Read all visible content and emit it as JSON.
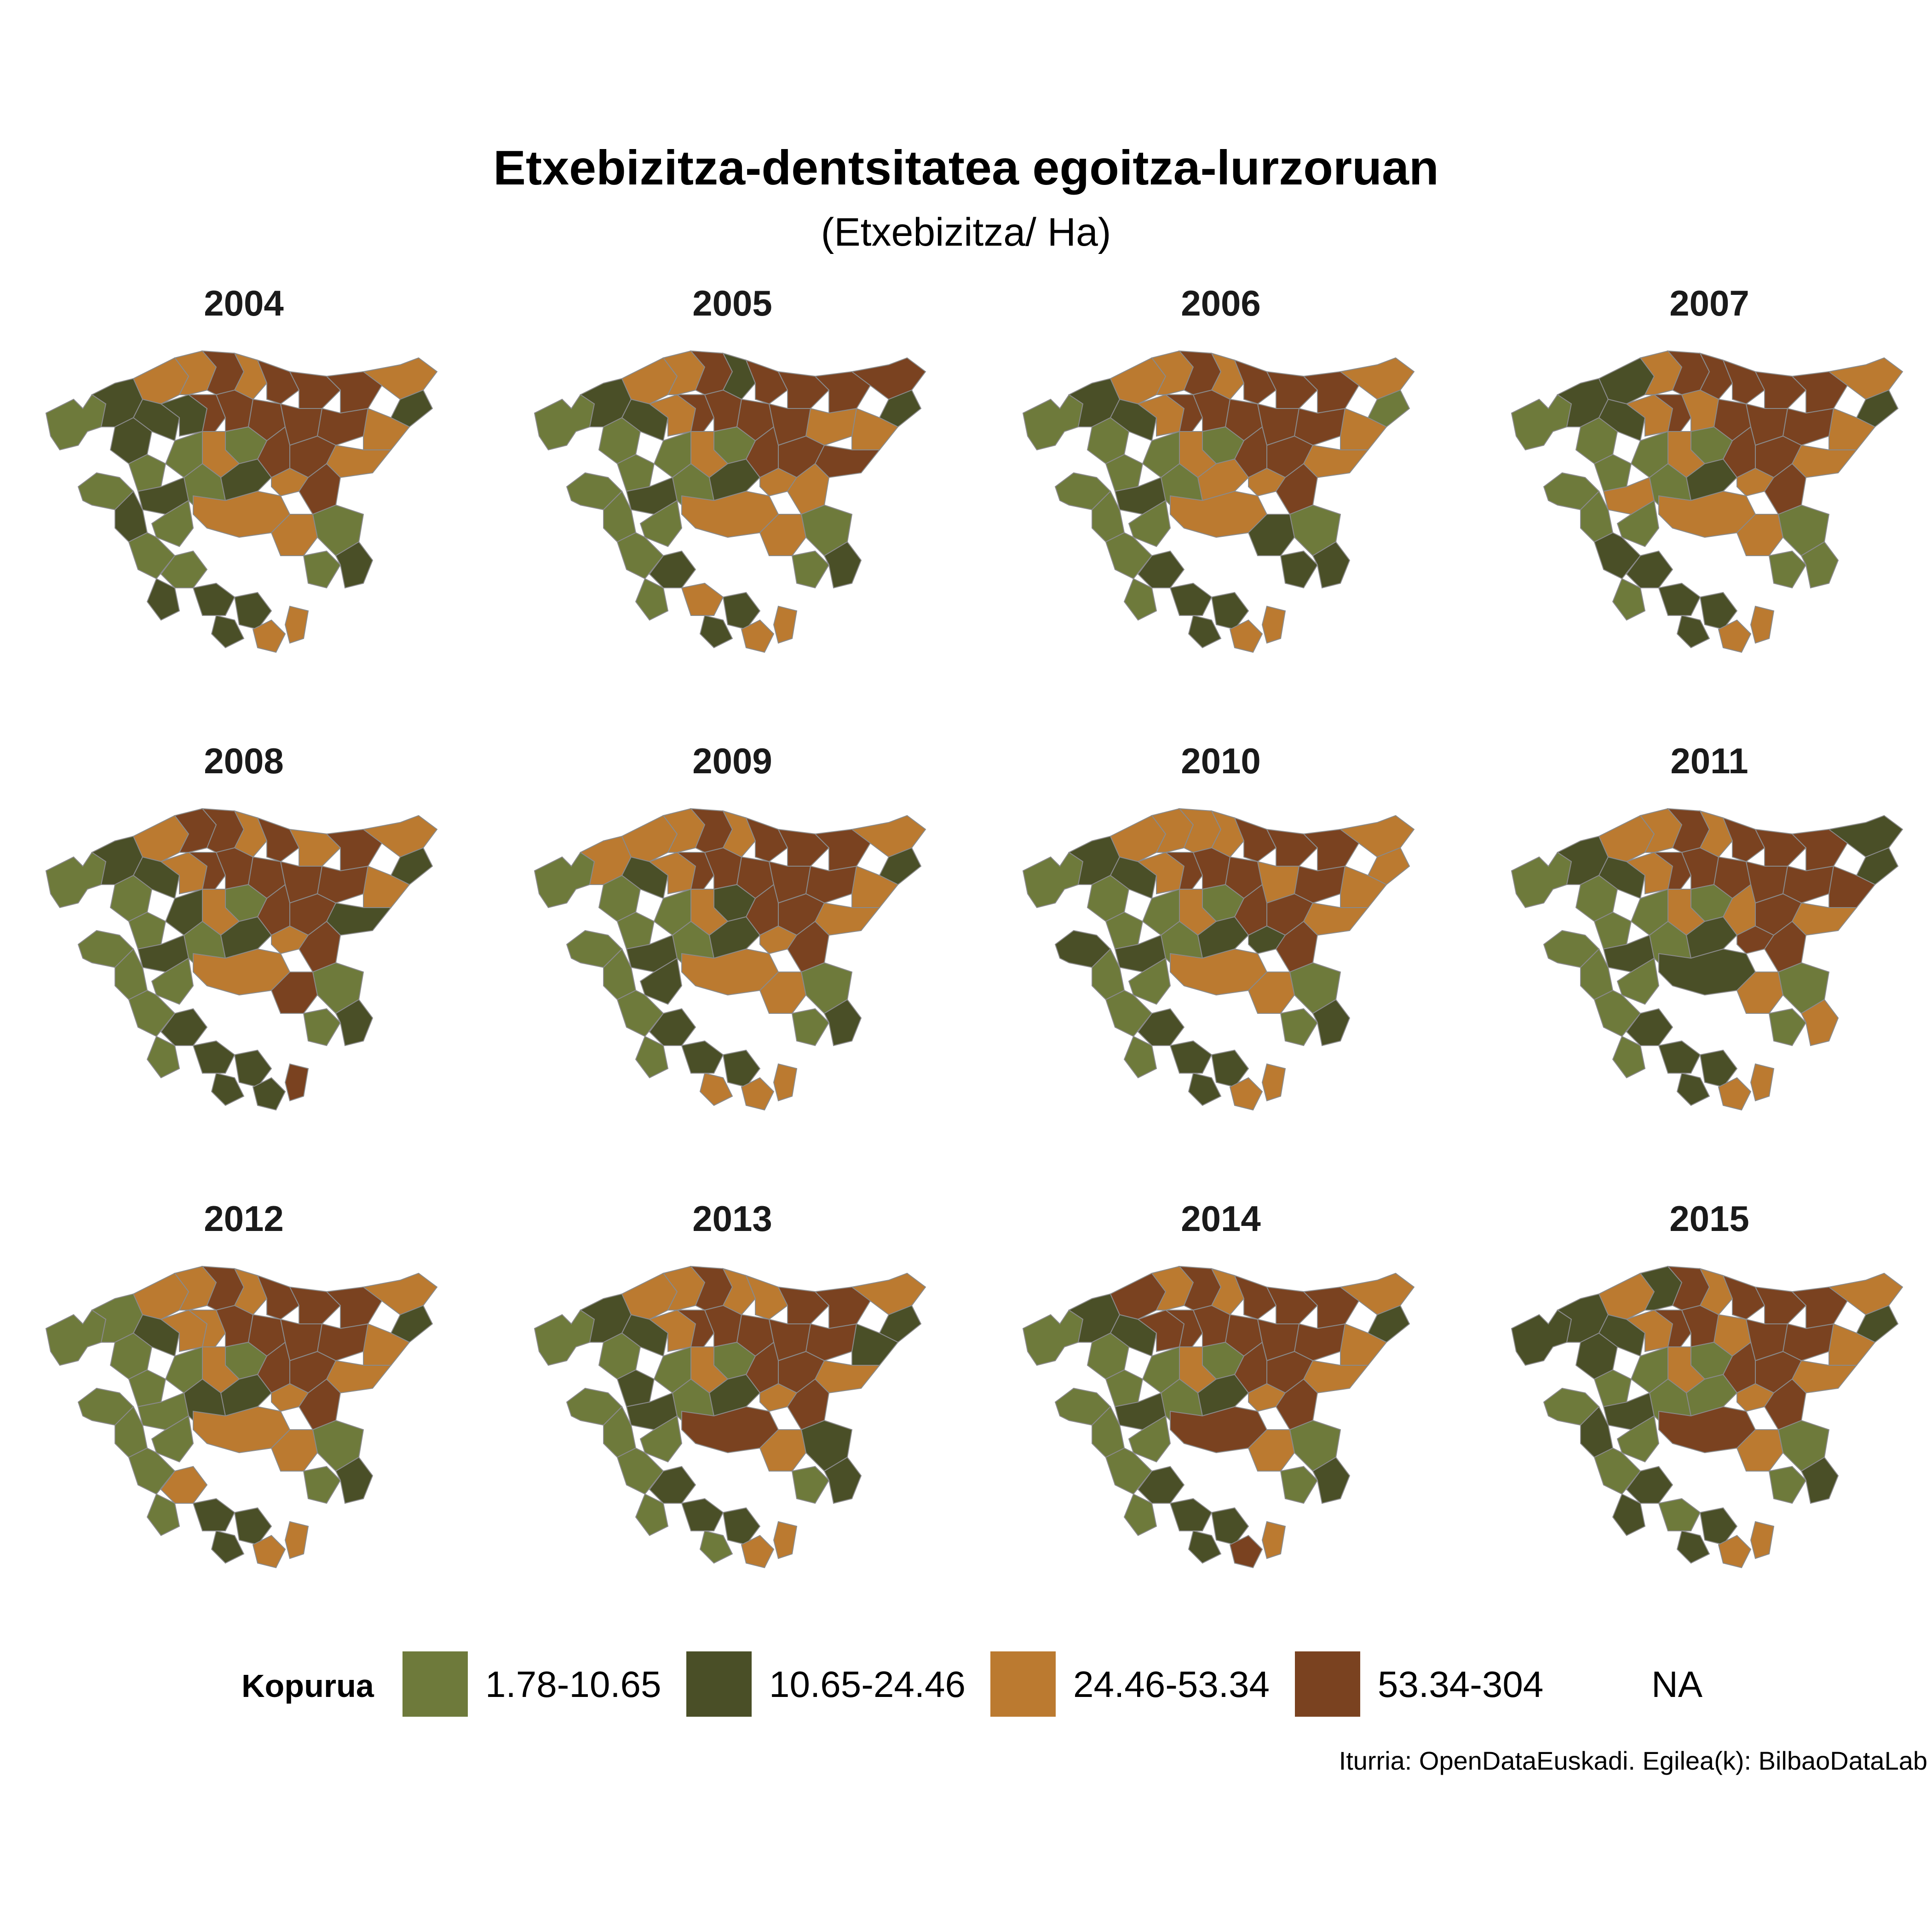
{
  "title": "Etxebizitza-dentsitatea egoitza-lurzoruan",
  "subtitle": "(Etxebizitza/ Ha)",
  "caption": "Iturria: OpenDataEuskadi. Egilea(k): BilbaoDataLab",
  "legend": {
    "title": "Kopurua",
    "items": [
      {
        "label": "1.78-10.65",
        "color": "#6e7a3b"
      },
      {
        "label": "10.65-24.46",
        "color": "#4a4f27"
      },
      {
        "label": "24.46-53.34",
        "color": "#bb7a30"
      },
      {
        "label": "53.34-304",
        "color": "#7a4220"
      },
      {
        "label": "NA",
        "color": "#ffffff"
      }
    ]
  },
  "panels": [
    {
      "year": "2004"
    },
    {
      "year": "2005"
    },
    {
      "year": "2006"
    },
    {
      "year": "2007"
    },
    {
      "year": "2008"
    },
    {
      "year": "2009"
    },
    {
      "year": "2010"
    },
    {
      "year": "2011"
    },
    {
      "year": "2012"
    },
    {
      "year": "2013"
    },
    {
      "year": "2014"
    },
    {
      "year": "2015"
    }
  ],
  "border_color": "#8a8a8a"
}
